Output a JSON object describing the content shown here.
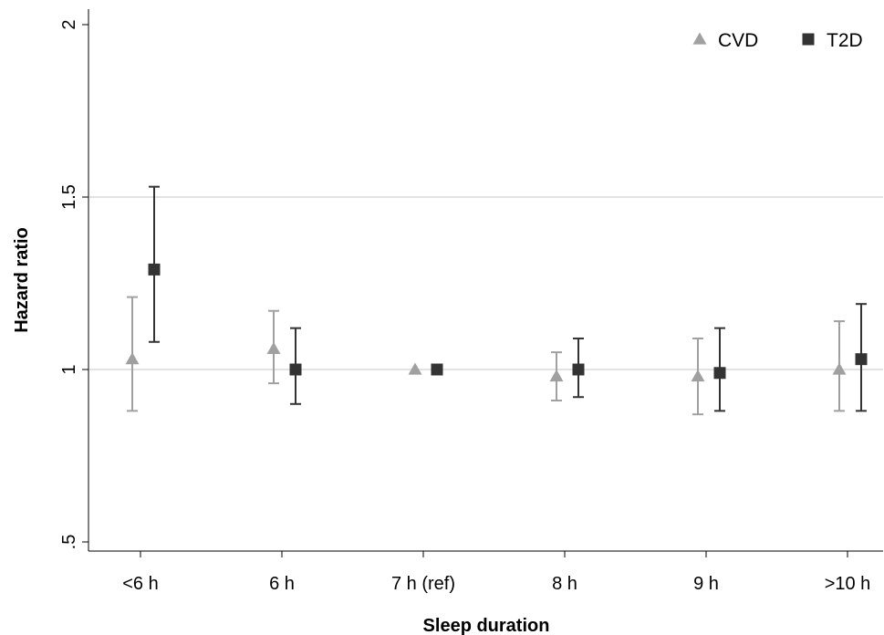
{
  "chart_data": {
    "type": "scatter",
    "subtype": "point-estimates-with-error-bars",
    "title": "",
    "xlabel": "Sleep duration",
    "ylabel": "Hazard ratio",
    "categories": [
      "<6 h",
      "6 h",
      "7 h (ref)",
      "8 h",
      "9 h",
      ">10 h"
    ],
    "ylim": [
      0.5,
      2
    ],
    "yticks": [
      0.5,
      1,
      1.5,
      2
    ],
    "ytick_labels": [
      ".5",
      "1",
      "1.5",
      "2"
    ],
    "grid": "horizontal at 1 and 1.5",
    "legend_position": "top-right",
    "series": [
      {
        "name": "CVD",
        "marker": "triangle",
        "color": "#a0a0a0",
        "values": [
          1.03,
          1.06,
          1.0,
          0.98,
          0.98,
          1.0
        ],
        "lower": [
          0.88,
          0.96,
          1.0,
          0.91,
          0.87,
          0.88
        ],
        "upper": [
          1.21,
          1.17,
          1.0,
          1.05,
          1.09,
          1.14
        ]
      },
      {
        "name": "T2D",
        "marker": "square",
        "color": "#333333",
        "values": [
          1.29,
          1.0,
          1.0,
          1.0,
          0.99,
          1.03
        ],
        "lower": [
          1.08,
          0.9,
          1.0,
          0.92,
          0.88,
          0.88
        ],
        "upper": [
          1.53,
          1.12,
          1.0,
          1.09,
          1.12,
          1.19
        ]
      }
    ]
  }
}
